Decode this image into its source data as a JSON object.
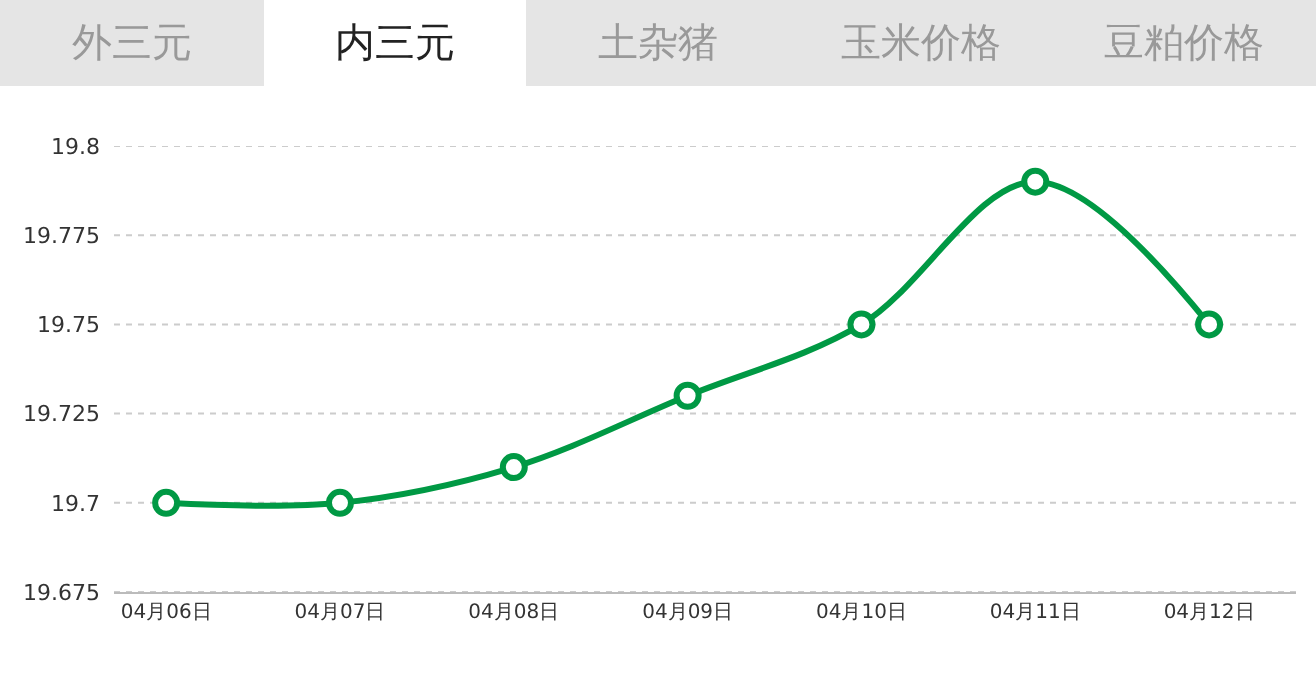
{
  "chart_data": {
    "type": "line",
    "title": "内三元",
    "annotations": [
      "外三元",
      "土杂猪",
      "玉米价格",
      "豆粕价格"
    ],
    "categories": [
      "04月06日",
      "04月07日",
      "04月08日",
      "04月09日",
      "04月10日",
      "04月11日",
      "04月12日"
    ],
    "series": [
      {
        "color": "#009944",
        "values": [
          19.7,
          19.7,
          19.71,
          19.73,
          19.75,
          19.79,
          19.75
        ]
      }
    ],
    "ylim": [
      19.675,
      19.8
    ],
    "yticks": [
      19.675,
      19.7,
      19.725,
      19.75,
      19.775,
      19.8
    ],
    "grid": "y",
    "marker": "circle",
    "line_style": "solid"
  }
}
